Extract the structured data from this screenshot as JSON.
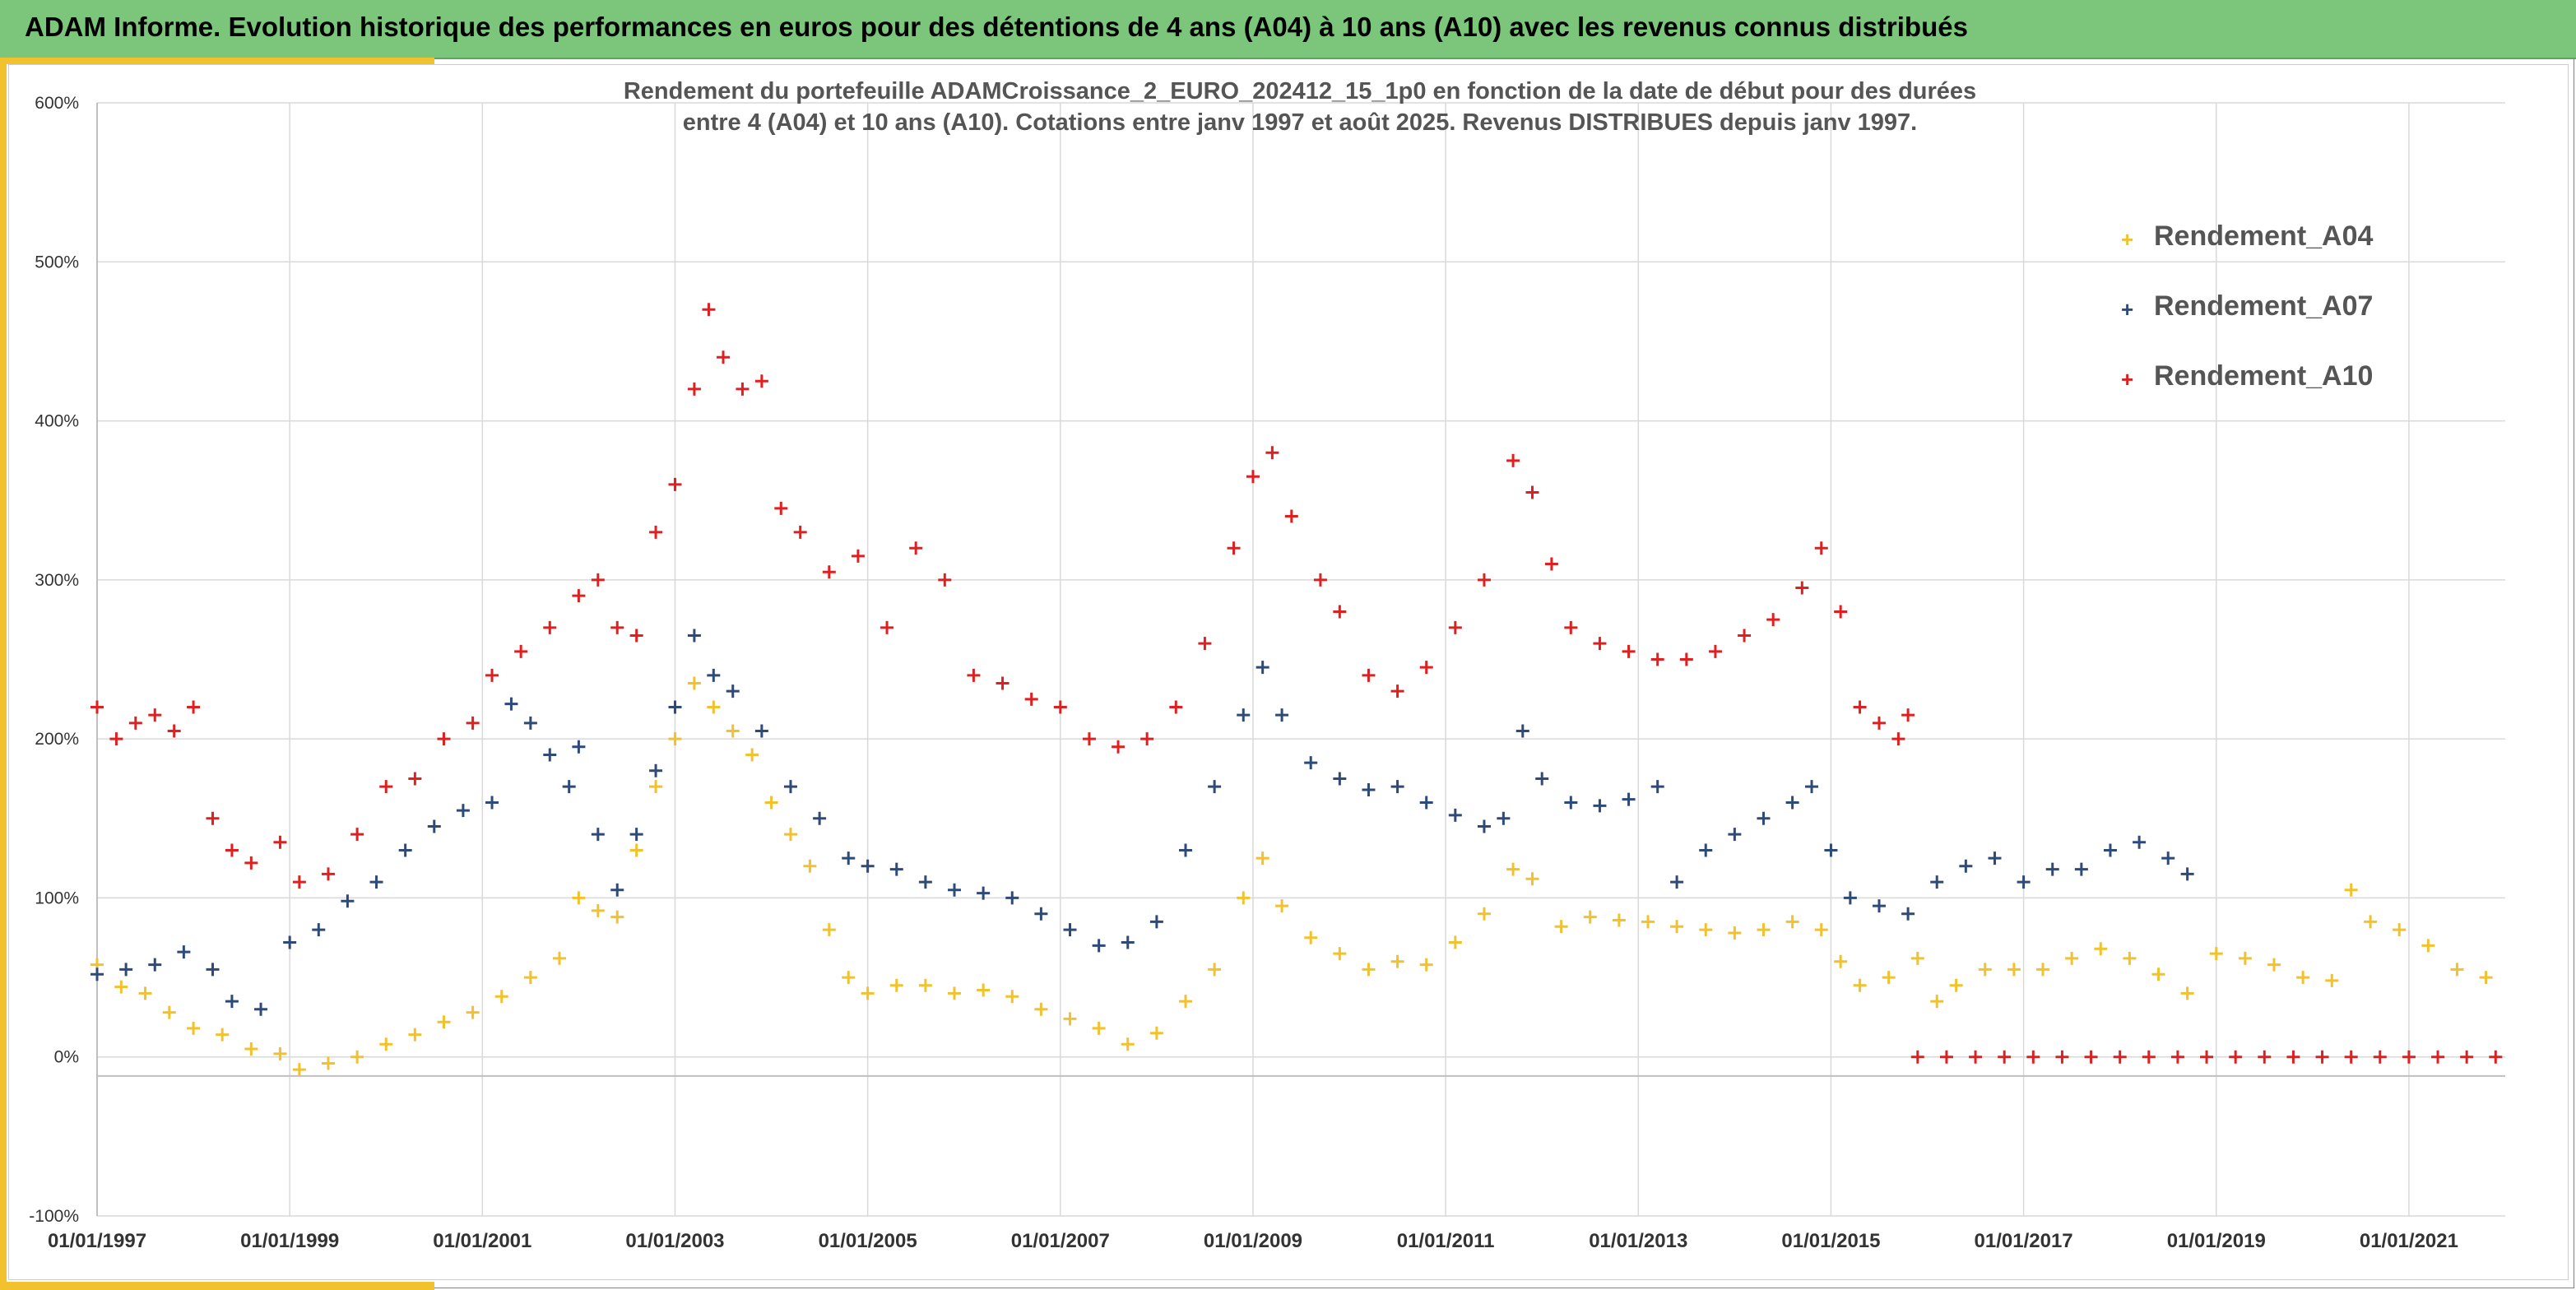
{
  "header": {
    "title": "ADAM Informe. Evolution historique des performances en euros pour des détentions de 4 ans (A04) à 10 ans (A10) avec les revenus connus distribués"
  },
  "colors": {
    "header_bg": "#7bc67b",
    "accent": "#f2c12e"
  },
  "chart_data": {
    "type": "scatter",
    "title_line1": "Rendement du portefeuille ADAMCroissance_2_EURO_202412_15_1p0  en fonction de la date de début pour des durées",
    "title_line2": "entre 4 (A04) et 10 ans (A10). Cotations entre janv 1997 et août 2025. Revenus DISTRIBUES depuis janv 1997.",
    "xlabel": "",
    "ylabel": "",
    "x_ticks": [
      "01/01/1997",
      "01/01/1999",
      "01/01/2001",
      "01/01/2003",
      "01/01/2005",
      "01/01/2007",
      "01/01/2009",
      "01/01/2011",
      "01/01/2013",
      "01/01/2015",
      "01/01/2017",
      "01/01/2019",
      "01/01/2021"
    ],
    "xlim": [
      "01/01/1997",
      "31/12/2021"
    ],
    "y_ticks": [
      "600%",
      "500%",
      "400%",
      "300%",
      "200%",
      "100%",
      "0%",
      "-100%"
    ],
    "ylim": [
      -100,
      600
    ],
    "y_unit": "%",
    "grid": true,
    "legend_position": "top-right",
    "marker": "+",
    "series": [
      {
        "name": "Rendement_A04",
        "color": "#f2c12e",
        "points": [
          [
            1997.0,
            58
          ],
          [
            1997.25,
            44
          ],
          [
            1997.5,
            40
          ],
          [
            1997.75,
            28
          ],
          [
            1998.0,
            18
          ],
          [
            1998.3,
            14
          ],
          [
            1998.6,
            5
          ],
          [
            1998.9,
            2
          ],
          [
            1999.1,
            -8
          ],
          [
            1999.4,
            -4
          ],
          [
            1999.7,
            0
          ],
          [
            2000.0,
            8
          ],
          [
            2000.3,
            14
          ],
          [
            2000.6,
            22
          ],
          [
            2000.9,
            28
          ],
          [
            2001.2,
            38
          ],
          [
            2001.5,
            50
          ],
          [
            2001.8,
            62
          ],
          [
            2002.0,
            100
          ],
          [
            2002.2,
            92
          ],
          [
            2002.4,
            88
          ],
          [
            2002.6,
            130
          ],
          [
            2002.8,
            170
          ],
          [
            2003.0,
            200
          ],
          [
            2003.2,
            235
          ],
          [
            2003.4,
            220
          ],
          [
            2003.6,
            205
          ],
          [
            2003.8,
            190
          ],
          [
            2004.0,
            160
          ],
          [
            2004.2,
            140
          ],
          [
            2004.4,
            120
          ],
          [
            2004.6,
            80
          ],
          [
            2004.8,
            50
          ],
          [
            2005.0,
            40
          ],
          [
            2005.3,
            45
          ],
          [
            2005.6,
            45
          ],
          [
            2005.9,
            40
          ],
          [
            2006.2,
            42
          ],
          [
            2006.5,
            38
          ],
          [
            2006.8,
            30
          ],
          [
            2007.1,
            24
          ],
          [
            2007.4,
            18
          ],
          [
            2007.7,
            8
          ],
          [
            2008.0,
            15
          ],
          [
            2008.3,
            35
          ],
          [
            2008.6,
            55
          ],
          [
            2008.9,
            100
          ],
          [
            2009.1,
            125
          ],
          [
            2009.3,
            95
          ],
          [
            2009.6,
            75
          ],
          [
            2009.9,
            65
          ],
          [
            2010.2,
            55
          ],
          [
            2010.5,
            60
          ],
          [
            2010.8,
            58
          ],
          [
            2011.1,
            72
          ],
          [
            2011.4,
            90
          ],
          [
            2011.7,
            118
          ],
          [
            2011.9,
            112
          ],
          [
            2012.2,
            82
          ],
          [
            2012.5,
            88
          ],
          [
            2012.8,
            86
          ],
          [
            2013.1,
            85
          ],
          [
            2013.4,
            82
          ],
          [
            2013.7,
            80
          ],
          [
            2014.0,
            78
          ],
          [
            2014.3,
            80
          ],
          [
            2014.6,
            85
          ],
          [
            2014.9,
            80
          ],
          [
            2015.1,
            60
          ],
          [
            2015.3,
            45
          ],
          [
            2015.6,
            50
          ],
          [
            2015.9,
            62
          ],
          [
            2016.1,
            35
          ],
          [
            2016.3,
            45
          ],
          [
            2016.6,
            55
          ],
          [
            2016.9,
            55
          ],
          [
            2017.2,
            55
          ],
          [
            2017.5,
            62
          ],
          [
            2017.8,
            68
          ],
          [
            2018.1,
            62
          ],
          [
            2018.4,
            52
          ],
          [
            2018.7,
            40
          ],
          [
            2019.0,
            65
          ],
          [
            2019.3,
            62
          ],
          [
            2019.6,
            58
          ],
          [
            2019.9,
            50
          ],
          [
            2020.2,
            48
          ],
          [
            2020.4,
            105
          ],
          [
            2020.6,
            85
          ],
          [
            2020.9,
            80
          ],
          [
            2021.2,
            70
          ],
          [
            2021.5,
            55
          ],
          [
            2021.8,
            50
          ]
        ]
      },
      {
        "name": "Rendement_A07",
        "color": "#2e4a78",
        "points": [
          [
            1997.0,
            52
          ],
          [
            1997.3,
            55
          ],
          [
            1997.6,
            58
          ],
          [
            1997.9,
            66
          ],
          [
            1998.2,
            55
          ],
          [
            1998.4,
            35
          ],
          [
            1998.7,
            30
          ],
          [
            1999.0,
            72
          ],
          [
            1999.3,
            80
          ],
          [
            1999.6,
            98
          ],
          [
            1999.9,
            110
          ],
          [
            2000.2,
            130
          ],
          [
            2000.5,
            145
          ],
          [
            2000.8,
            155
          ],
          [
            2001.1,
            160
          ],
          [
            2001.3,
            222
          ],
          [
            2001.5,
            210
          ],
          [
            2001.7,
            190
          ],
          [
            2001.9,
            170
          ],
          [
            2002.0,
            195
          ],
          [
            2002.2,
            140
          ],
          [
            2002.4,
            105
          ],
          [
            2002.6,
            140
          ],
          [
            2002.8,
            180
          ],
          [
            2003.0,
            220
          ],
          [
            2003.2,
            265
          ],
          [
            2003.4,
            240
          ],
          [
            2003.6,
            230
          ],
          [
            2003.9,
            205
          ],
          [
            2004.2,
            170
          ],
          [
            2004.5,
            150
          ],
          [
            2004.8,
            125
          ],
          [
            2005.0,
            120
          ],
          [
            2005.3,
            118
          ],
          [
            2005.6,
            110
          ],
          [
            2005.9,
            105
          ],
          [
            2006.2,
            103
          ],
          [
            2006.5,
            100
          ],
          [
            2006.8,
            90
          ],
          [
            2007.1,
            80
          ],
          [
            2007.4,
            70
          ],
          [
            2007.7,
            72
          ],
          [
            2008.0,
            85
          ],
          [
            2008.3,
            130
          ],
          [
            2008.6,
            170
          ],
          [
            2008.9,
            215
          ],
          [
            2009.1,
            245
          ],
          [
            2009.3,
            215
          ],
          [
            2009.6,
            185
          ],
          [
            2009.9,
            175
          ],
          [
            2010.2,
            168
          ],
          [
            2010.5,
            170
          ],
          [
            2010.8,
            160
          ],
          [
            2011.1,
            152
          ],
          [
            2011.4,
            145
          ],
          [
            2011.6,
            150
          ],
          [
            2011.8,
            205
          ],
          [
            2012.0,
            175
          ],
          [
            2012.3,
            160
          ],
          [
            2012.6,
            158
          ],
          [
            2012.9,
            162
          ],
          [
            2013.2,
            170
          ],
          [
            2013.4,
            110
          ],
          [
            2013.7,
            130
          ],
          [
            2014.0,
            140
          ],
          [
            2014.3,
            150
          ],
          [
            2014.6,
            160
          ],
          [
            2014.8,
            170
          ],
          [
            2015.0,
            130
          ],
          [
            2015.2,
            100
          ],
          [
            2015.5,
            95
          ],
          [
            2015.8,
            90
          ],
          [
            2016.1,
            110
          ],
          [
            2016.4,
            120
          ],
          [
            2016.7,
            125
          ],
          [
            2017.0,
            110
          ],
          [
            2017.3,
            118
          ],
          [
            2017.6,
            118
          ],
          [
            2017.9,
            130
          ],
          [
            2018.2,
            135
          ],
          [
            2018.5,
            125
          ],
          [
            2018.7,
            115
          ]
        ]
      },
      {
        "name": "Rendement_A10",
        "color": "#e02020",
        "points": [
          [
            1997.0,
            220
          ],
          [
            1997.2,
            200
          ],
          [
            1997.4,
            210
          ],
          [
            1997.6,
            215
          ],
          [
            1997.8,
            205
          ],
          [
            1998.0,
            220
          ],
          [
            1998.2,
            150
          ],
          [
            1998.4,
            130
          ],
          [
            1998.6,
            122
          ],
          [
            1998.9,
            135
          ],
          [
            1999.1,
            110
          ],
          [
            1999.4,
            115
          ],
          [
            1999.7,
            140
          ],
          [
            2000.0,
            170
          ],
          [
            2000.3,
            175
          ],
          [
            2000.6,
            200
          ],
          [
            2000.9,
            210
          ],
          [
            2001.1,
            240
          ],
          [
            2001.4,
            255
          ],
          [
            2001.7,
            270
          ],
          [
            2002.0,
            290
          ],
          [
            2002.2,
            300
          ],
          [
            2002.4,
            270
          ],
          [
            2002.6,
            265
          ],
          [
            2002.8,
            330
          ],
          [
            2003.0,
            360
          ],
          [
            2003.2,
            420
          ],
          [
            2003.35,
            470
          ],
          [
            2003.5,
            440
          ],
          [
            2003.7,
            420
          ],
          [
            2003.9,
            425
          ],
          [
            2004.1,
            345
          ],
          [
            2004.3,
            330
          ],
          [
            2004.6,
            305
          ],
          [
            2004.9,
            315
          ],
          [
            2005.2,
            270
          ],
          [
            2005.5,
            320
          ],
          [
            2005.8,
            300
          ],
          [
            2006.1,
            240
          ],
          [
            2006.4,
            235
          ],
          [
            2006.7,
            225
          ],
          [
            2007.0,
            220
          ],
          [
            2007.3,
            200
          ],
          [
            2007.6,
            195
          ],
          [
            2007.9,
            200
          ],
          [
            2008.2,
            220
          ],
          [
            2008.5,
            260
          ],
          [
            2008.8,
            320
          ],
          [
            2009.0,
            365
          ],
          [
            2009.2,
            380
          ],
          [
            2009.4,
            340
          ],
          [
            2009.7,
            300
          ],
          [
            2009.9,
            280
          ],
          [
            2010.2,
            240
          ],
          [
            2010.5,
            230
          ],
          [
            2010.8,
            245
          ],
          [
            2011.1,
            270
          ],
          [
            2011.4,
            300
          ],
          [
            2011.7,
            375
          ],
          [
            2011.9,
            355
          ],
          [
            2012.1,
            310
          ],
          [
            2012.3,
            270
          ],
          [
            2012.6,
            260
          ],
          [
            2012.9,
            255
          ],
          [
            2013.2,
            250
          ],
          [
            2013.5,
            250
          ],
          [
            2013.8,
            255
          ],
          [
            2014.1,
            265
          ],
          [
            2014.4,
            275
          ],
          [
            2014.7,
            295
          ],
          [
            2014.9,
            320
          ],
          [
            2015.1,
            280
          ],
          [
            2015.3,
            220
          ],
          [
            2015.5,
            210
          ],
          [
            2015.7,
            200
          ],
          [
            2015.8,
            215
          ],
          [
            2015.9,
            0
          ],
          [
            2016.2,
            0
          ],
          [
            2016.5,
            0
          ],
          [
            2016.8,
            0
          ],
          [
            2017.1,
            0
          ],
          [
            2017.4,
            0
          ],
          [
            2017.7,
            0
          ],
          [
            2018.0,
            0
          ],
          [
            2018.3,
            0
          ],
          [
            2018.6,
            0
          ],
          [
            2018.9,
            0
          ],
          [
            2019.2,
            0
          ],
          [
            2019.5,
            0
          ],
          [
            2019.8,
            0
          ],
          [
            2020.1,
            0
          ],
          [
            2020.4,
            0
          ],
          [
            2020.7,
            0
          ],
          [
            2021.0,
            0
          ],
          [
            2021.3,
            0
          ],
          [
            2021.6,
            0
          ],
          [
            2021.9,
            0
          ]
        ]
      }
    ]
  }
}
